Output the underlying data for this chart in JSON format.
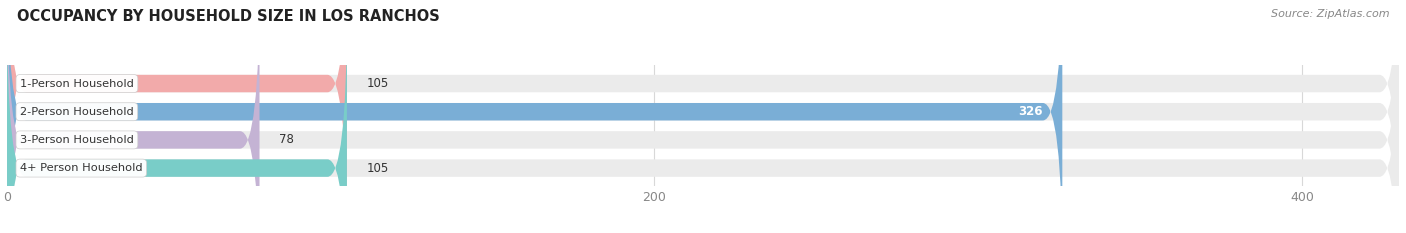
{
  "title": "OCCUPANCY BY HOUSEHOLD SIZE IN LOS RANCHOS",
  "source": "Source: ZipAtlas.com",
  "categories": [
    "1-Person Household",
    "2-Person Household",
    "3-Person Household",
    "4+ Person Household"
  ],
  "values": [
    105,
    326,
    78,
    105
  ],
  "bar_colors": [
    "#f2aaaa",
    "#7aaed6",
    "#c4b3d4",
    "#79cdc8"
  ],
  "bar_bg_color": "#ebebeb",
  "label_bg_color": "#ffffff",
  "value_label_colors": [
    "#666666",
    "#ffffff",
    "#666666",
    "#666666"
  ],
  "xlim": [
    0,
    430
  ],
  "xticks": [
    0,
    200,
    400
  ],
  "figsize": [
    14.06,
    2.33
  ],
  "dpi": 100,
  "title_fontsize": 10.5,
  "bar_height": 0.62,
  "background_color": "#ffffff",
  "grid_color": "#d8d8d8",
  "text_color": "#333333",
  "tick_color": "#888888"
}
